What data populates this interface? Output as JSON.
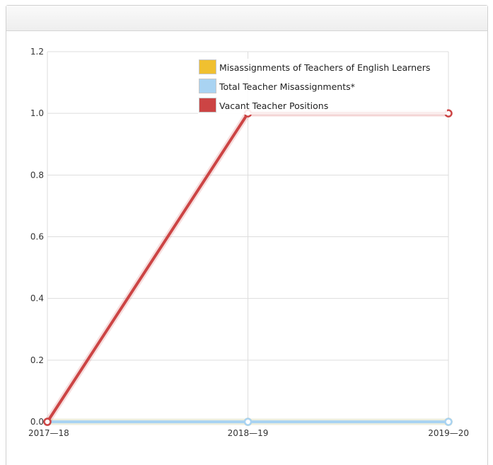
{
  "chart_data": {
    "type": "line",
    "categories": [
      "2017—18",
      "2018—19",
      "2019—20"
    ],
    "ylim": [
      0,
      1.2
    ],
    "yticks": [
      "0.0",
      "0.2",
      "0.4",
      "0.6",
      "0.8",
      "1.0",
      "1.2"
    ],
    "grid": true,
    "legend_position": "top-right",
    "series": [
      {
        "name": "Misassignments of Teachers of English Learners",
        "color": "#f0c030",
        "values": [
          0,
          0,
          0
        ]
      },
      {
        "name": "Total Teacher Misassignments*",
        "color": "#a9d3f2",
        "values": [
          0,
          0,
          0
        ]
      },
      {
        "name": "Vacant Teacher Positions",
        "color": "#cc4444",
        "values": [
          0,
          1,
          1
        ]
      }
    ]
  }
}
